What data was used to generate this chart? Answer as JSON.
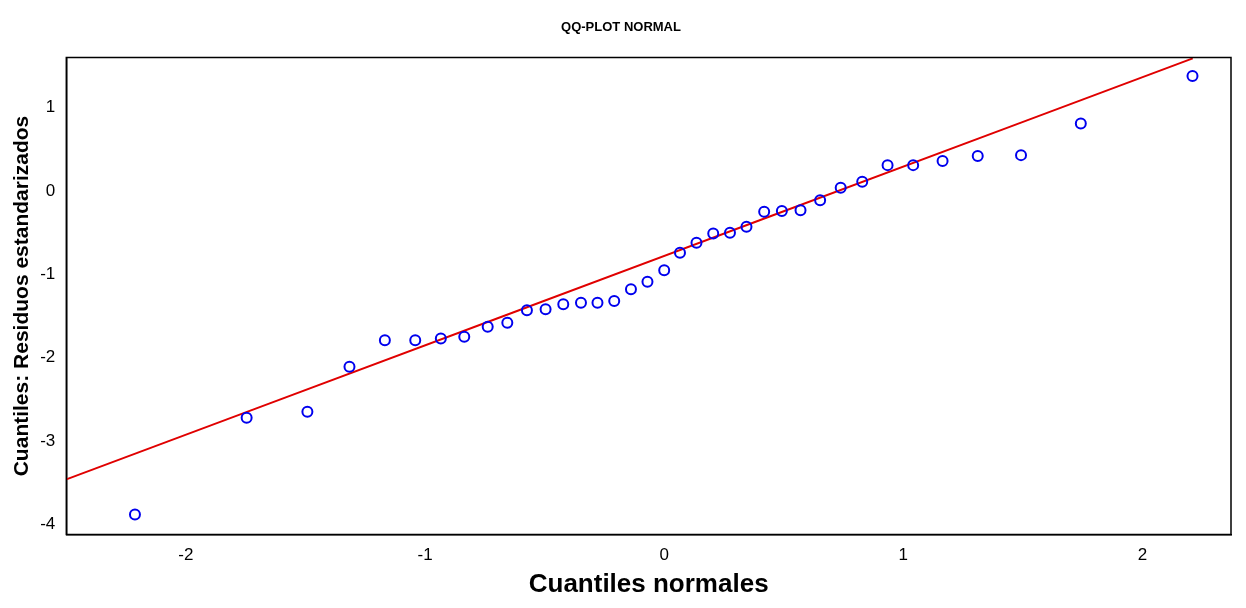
{
  "chart_data": {
    "type": "scatter",
    "title": "QQ-PLOT NORMAL",
    "xlabel": "Cuantiles normales",
    "ylabel": "Cuantiles: Residuos estandarizados",
    "xlim": [
      -2.5,
      2.37
    ],
    "ylim": [
      -4.12,
      1.6
    ],
    "xticks": [
      -2,
      -1,
      0,
      1,
      2
    ],
    "yticks": [
      -4,
      -3,
      -2,
      -1,
      0,
      1
    ],
    "grid": false,
    "legend": false,
    "series": [
      {
        "marker": "circle",
        "color": "#0000ee",
        "x": [
          -2.213,
          -1.746,
          -1.492,
          -1.316,
          -1.168,
          -1.041,
          -0.934,
          -0.836,
          -0.738,
          -0.656,
          -0.574,
          -0.496,
          -0.422,
          -0.348,
          -0.279,
          -0.209,
          -0.139,
          -0.07,
          0,
          0.066,
          0.135,
          0.205,
          0.275,
          0.344,
          0.418,
          0.492,
          0.57,
          0.652,
          0.738,
          0.828,
          0.934,
          1.041,
          1.164,
          1.311,
          1.492,
          1.742,
          2.209
        ],
        "values": [
          -3.88,
          -2.72,
          -2.65,
          -2.11,
          -1.79,
          -1.79,
          -1.77,
          -1.75,
          -1.63,
          -1.58,
          -1.43,
          -1.42,
          -1.36,
          -1.34,
          -1.34,
          -1.32,
          -1.18,
          -1.09,
          -0.95,
          -0.74,
          -0.62,
          -0.51,
          -0.5,
          -0.43,
          -0.25,
          -0.24,
          -0.23,
          -0.11,
          0.04,
          0.11,
          0.31,
          0.31,
          0.36,
          0.42,
          0.43,
          0.81,
          1.38
        ]
      },
      {
        "type": "line",
        "color": "#e00000",
        "x": [
          -2.5,
          2.21
        ],
        "values": [
          -3.46,
          1.59
        ]
      }
    ]
  }
}
